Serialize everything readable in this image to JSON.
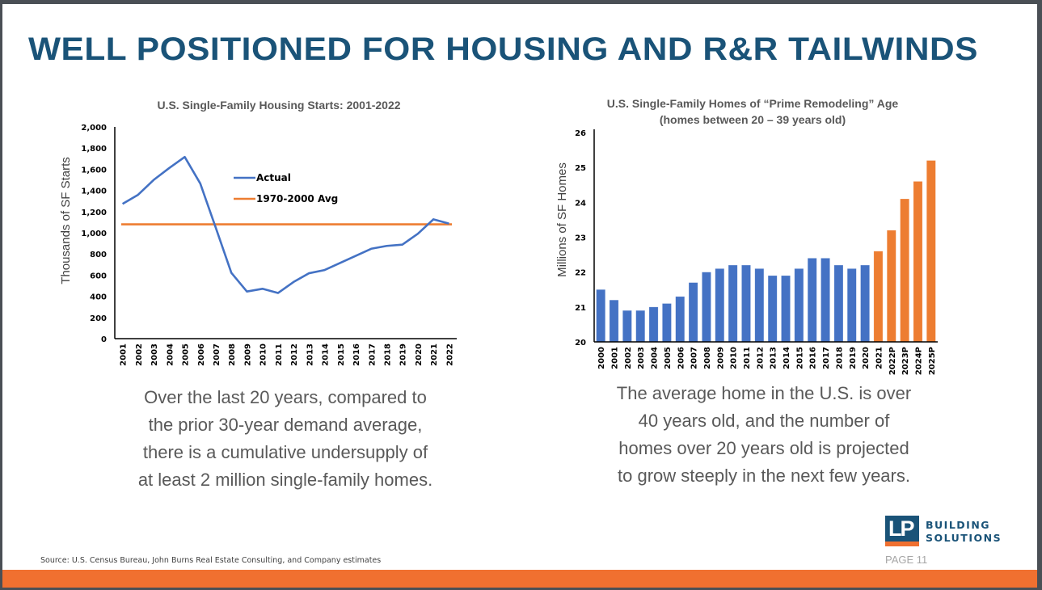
{
  "slide": {
    "title": "WELL POSITIONED FOR HOUSING AND R&R TAILWINDS",
    "source": "Source: U.S. Census Bureau, John Burns Real Estate Consulting, and Company estimates",
    "page": "PAGE 11",
    "logo": {
      "mark": "LP",
      "line1": "BUILDING",
      "line2": "SOLUTIONS"
    },
    "captions": {
      "left": [
        "Over the last 20 years, compared to",
        "the prior 30-year demand average,",
        "there is a cumulative undersupply of",
        "at least 2 million single-family homes."
      ],
      "right": [
        "The average home in the U.S. is over",
        "40 years old, and the number of",
        "homes over 20 years old is projected",
        "to grow steeply in the next few years."
      ]
    },
    "colors": {
      "brand_blue": "#1a5378",
      "accent_orange": "#f07030",
      "series_blue": "#4472c4",
      "series_orange": "#ed7d31"
    }
  },
  "chart_data": [
    {
      "type": "line",
      "title": "U.S. Single-Family Housing Starts: 2001-2022",
      "xlabel": "",
      "ylabel": "Thousands of SF Starts",
      "ylim": [
        0,
        2000
      ],
      "yticks": [
        0,
        200,
        400,
        600,
        800,
        1000,
        1200,
        1400,
        1600,
        1800,
        2000
      ],
      "ytick_labels": [
        "0",
        "200",
        "400",
        "600",
        "800",
        "1,000",
        "1,200",
        "1,400",
        "1,600",
        "1,800",
        "2,000"
      ],
      "categories": [
        "2001",
        "2002",
        "2003",
        "2004",
        "2005",
        "2006",
        "2007",
        "2008",
        "2009",
        "2010",
        "2011",
        "2012",
        "2013",
        "2014",
        "2015",
        "2016",
        "2017",
        "2018",
        "2019",
        "2020",
        "2021",
        "2022"
      ],
      "series": [
        {
          "name": "Actual",
          "color": "#4472c4",
          "values": [
            1273,
            1359,
            1499,
            1611,
            1716,
            1465,
            1046,
            622,
            445,
            471,
            431,
            535,
            618,
            648,
            715,
            782,
            849,
            876,
            888,
            991,
            1127,
            1087
          ]
        },
        {
          "name": "1970-2000 Avg",
          "color": "#ed7d31",
          "values": [
            1080,
            1080,
            1080,
            1080,
            1080,
            1080,
            1080,
            1080,
            1080,
            1080,
            1080,
            1080,
            1080,
            1080,
            1080,
            1080,
            1080,
            1080,
            1080,
            1080,
            1080,
            1080
          ]
        }
      ],
      "legend": "center-right",
      "grid": false
    },
    {
      "type": "bar",
      "title": "U.S. Single-Family Homes of “Prime Remodeling” Age",
      "subtitle": "(homes between 20 – 39 years old)",
      "xlabel": "",
      "ylabel": "Millions of SF Homes",
      "ylim": [
        20,
        26
      ],
      "yticks": [
        20,
        21,
        22,
        23,
        24,
        25,
        26
      ],
      "categories": [
        "2000",
        "2001",
        "2002",
        "2003",
        "2004",
        "2005",
        "2006",
        "2007",
        "2008",
        "2009",
        "2010",
        "2011",
        "2012",
        "2013",
        "2014",
        "2015",
        "2016",
        "2017",
        "2018",
        "2019",
        "2020",
        "2021",
        "2022P",
        "2023P",
        "2024P",
        "2025P"
      ],
      "values": [
        21.5,
        21.2,
        20.9,
        20.9,
        21.0,
        21.1,
        21.3,
        21.7,
        22.0,
        22.1,
        22.2,
        22.2,
        22.1,
        21.9,
        21.9,
        22.1,
        22.4,
        22.4,
        22.2,
        22.1,
        22.2,
        22.6,
        23.2,
        24.1,
        24.6,
        25.2
      ],
      "bar_colors": [
        "#4472c4",
        "#4472c4",
        "#4472c4",
        "#4472c4",
        "#4472c4",
        "#4472c4",
        "#4472c4",
        "#4472c4",
        "#4472c4",
        "#4472c4",
        "#4472c4",
        "#4472c4",
        "#4472c4",
        "#4472c4",
        "#4472c4",
        "#4472c4",
        "#4472c4",
        "#4472c4",
        "#4472c4",
        "#4472c4",
        "#4472c4",
        "#ed7d31",
        "#ed7d31",
        "#ed7d31",
        "#ed7d31",
        "#ed7d31"
      ],
      "grid": false
    }
  ]
}
